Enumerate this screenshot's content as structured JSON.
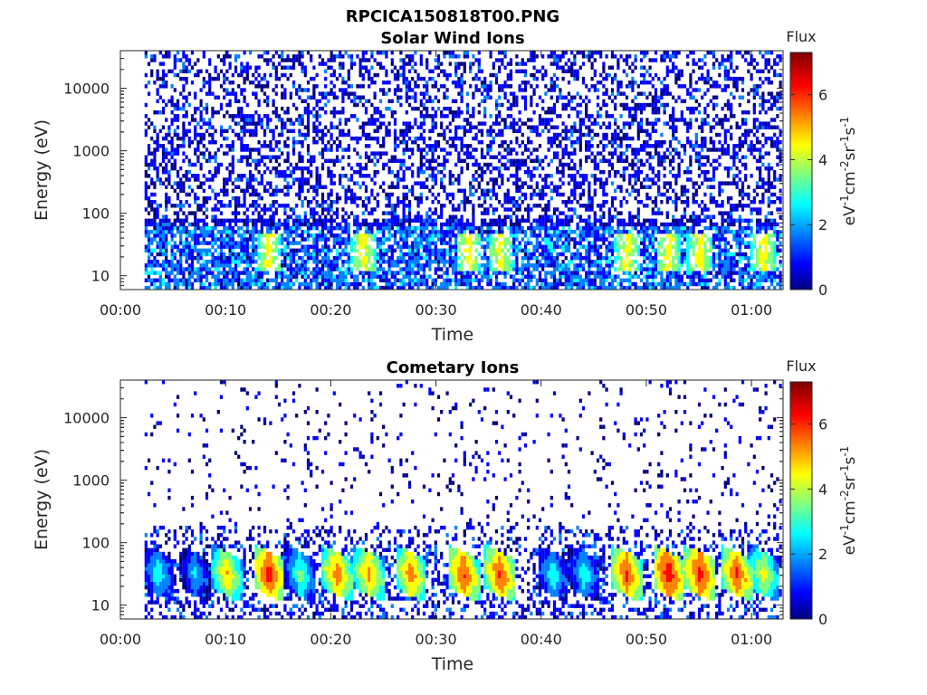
{
  "figure_title": "RPCICA150818T00.PNG",
  "colors": {
    "colormap": [
      "#00007f",
      "#0000ff",
      "#007fff",
      "#00ffff",
      "#7fff7f",
      "#ffff00",
      "#ff7f00",
      "#ff0000",
      "#7f0000"
    ],
    "axis": "#262626",
    "background": "#ffffff"
  },
  "chart_data": [
    {
      "type": "heatmap",
      "title": "Solar Wind Ions",
      "xlabel": "Time",
      "ylabel": "Energy (eV)",
      "x_ticks": [
        "00:00",
        "00:10",
        "00:20",
        "00:30",
        "00:40",
        "00:50",
        "01:00"
      ],
      "x_tick_minutes": [
        0,
        10,
        20,
        30,
        40,
        50,
        60
      ],
      "xlim_minutes": [
        0,
        63
      ],
      "y_ticks": [
        "10",
        "100",
        "1000",
        "10000"
      ],
      "y_tick_values": [
        10,
        100,
        1000,
        10000
      ],
      "ylim": [
        6,
        40000
      ],
      "y_scale": "log",
      "data_start_minute": 2.3,
      "colorbar": {
        "title": "Flux",
        "label": "eV-1cm-2sr-1s-1",
        "ticks": [
          0,
          2,
          4,
          6
        ],
        "range": [
          0,
          7.3
        ]
      },
      "pattern": "dense low-flux (0-2) noise at all energies, moderate 3-5 flux bursts near 20-40 eV at approx 00:14, 00:23, 00:33, 00:36, 00:48, 00:52, 00:55"
    },
    {
      "type": "heatmap",
      "title": "Cometary Ions",
      "xlabel": "Time",
      "ylabel": "Energy (eV)",
      "x_ticks": [
        "00:00",
        "00:10",
        "00:20",
        "00:30",
        "00:40",
        "00:50",
        "01:00"
      ],
      "x_tick_minutes": [
        0,
        10,
        20,
        30,
        40,
        50,
        60
      ],
      "xlim_minutes": [
        0,
        63
      ],
      "y_ticks": [
        "10",
        "100",
        "1000",
        "10000"
      ],
      "y_tick_values": [
        10,
        100,
        1000,
        10000
      ],
      "ylim": [
        6,
        40000
      ],
      "y_scale": "log",
      "data_start_minute": 2.3,
      "colorbar": {
        "title": "Flux",
        "label": "eV-1cm-2sr-1s-1",
        "ticks": [
          0,
          2,
          4,
          6
        ],
        "range": [
          0,
          7.3
        ]
      },
      "burst_minutes": [
        3.5,
        7,
        10,
        14,
        17,
        20.5,
        23.5,
        27.5,
        32.5,
        36,
        41,
        44,
        48,
        52,
        55,
        58.5,
        61
      ],
      "burst_peak_flux": [
        3.5,
        3,
        5.5,
        6.8,
        4,
        6,
        5.8,
        6,
        6.5,
        6.5,
        3.5,
        3.5,
        6.5,
        7,
        6.8,
        6.5,
        5
      ],
      "pattern": "sparse low-flux points above 200 eV, intense (5-7) cometary ion bursts between 15 and 60 eV"
    }
  ]
}
